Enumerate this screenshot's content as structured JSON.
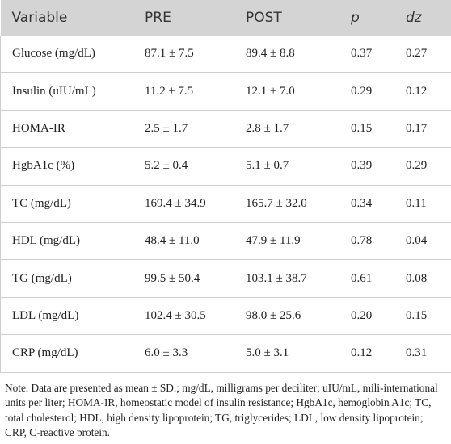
{
  "table": {
    "header": [
      "Variable",
      "PRE",
      "POST",
      "p",
      "dz"
    ],
    "rows": [
      [
        "Glucose (mg/dL)",
        "87.1 ± 7.5",
        "89.4 ± 8.8",
        "0.37",
        "0.27"
      ],
      [
        "Insulin (uIU/mL)",
        "11.2 ± 7.5",
        "12.1 ± 7.0",
        "0.29",
        "0.12"
      ],
      [
        "HOMA-IR",
        "2.5 ± 1.7",
        "2.8 ± 1.7",
        "0.15",
        "0.17"
      ],
      [
        "HgbA1c (%)",
        "5.2 ± 0.4",
        "5.1 ± 0.7",
        "0.39",
        "0.29"
      ],
      [
        "TC (mg/dL)",
        "169.4 ± 34.9",
        "165.7 ± 32.0",
        "0.34",
        "0.11"
      ],
      [
        "HDL (mg/dL)",
        "48.4 ± 11.0",
        "47.9 ± 11.9",
        "0.78",
        "0.04"
      ],
      [
        "TG (mg/dL)",
        "99.5 ± 50.4",
        "103.1 ± 38.7",
        "0.61",
        "0.08"
      ],
      [
        "LDL (mg/dL)",
        "102.4 ± 30.5",
        "98.0 ± 25.6",
        "0.20",
        "0.15"
      ],
      [
        "CRP (mg/dL)",
        "6.0 ± 3.3",
        "5.0 ± 3.1",
        "0.12",
        "0.31"
      ]
    ]
  },
  "note": "Note. Data are presented as mean ± SD.; mg/dL, milligrams per deciliter; uIU/mL, mili-international units per liter; HOMA-IR, homeostatic model of insulin resistance; HgbA1c, hemoglobin A1c; TC, total cholesterol; HDL, high density lipoprotein; TG, triglycerides; LDL, low density lipoprotein; CRP, C-reactive protein."
}
